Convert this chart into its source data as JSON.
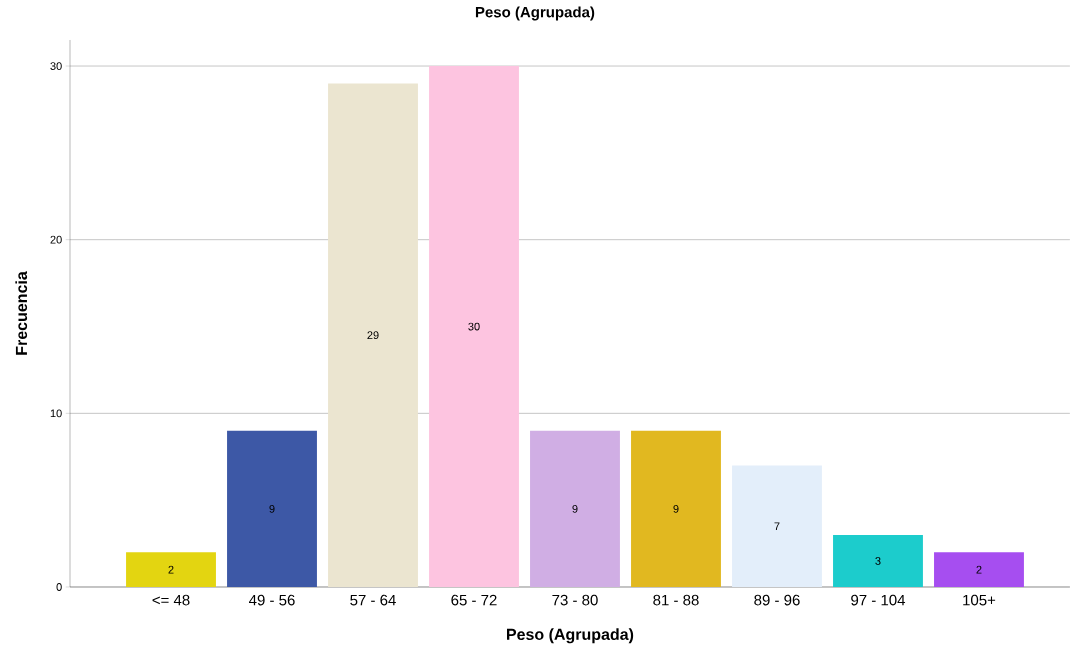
{
  "chart_data": {
    "type": "bar",
    "title": "Peso  (Agrupada)",
    "xlabel": "Peso  (Agrupada)",
    "ylabel": "Frecuencia",
    "categories": [
      "<= 48",
      "49 - 56",
      "57 - 64",
      "65 - 72",
      "73 - 80",
      "81 - 88",
      "89 - 96",
      "97 - 104",
      "105+"
    ],
    "values": [
      2,
      9,
      29,
      30,
      9,
      9,
      7,
      3,
      2
    ],
    "colors": [
      "#e3d511",
      "#3d58a6",
      "#ebe5d0",
      "#fdc4e0",
      "#d0aee4",
      "#e1b820",
      "#e3eefa",
      "#1ccccc",
      "#a64ef0"
    ],
    "ylim": [
      0,
      31.5
    ],
    "yticks": [
      0,
      10,
      20,
      30
    ],
    "grid": "y",
    "data_labels": true
  }
}
